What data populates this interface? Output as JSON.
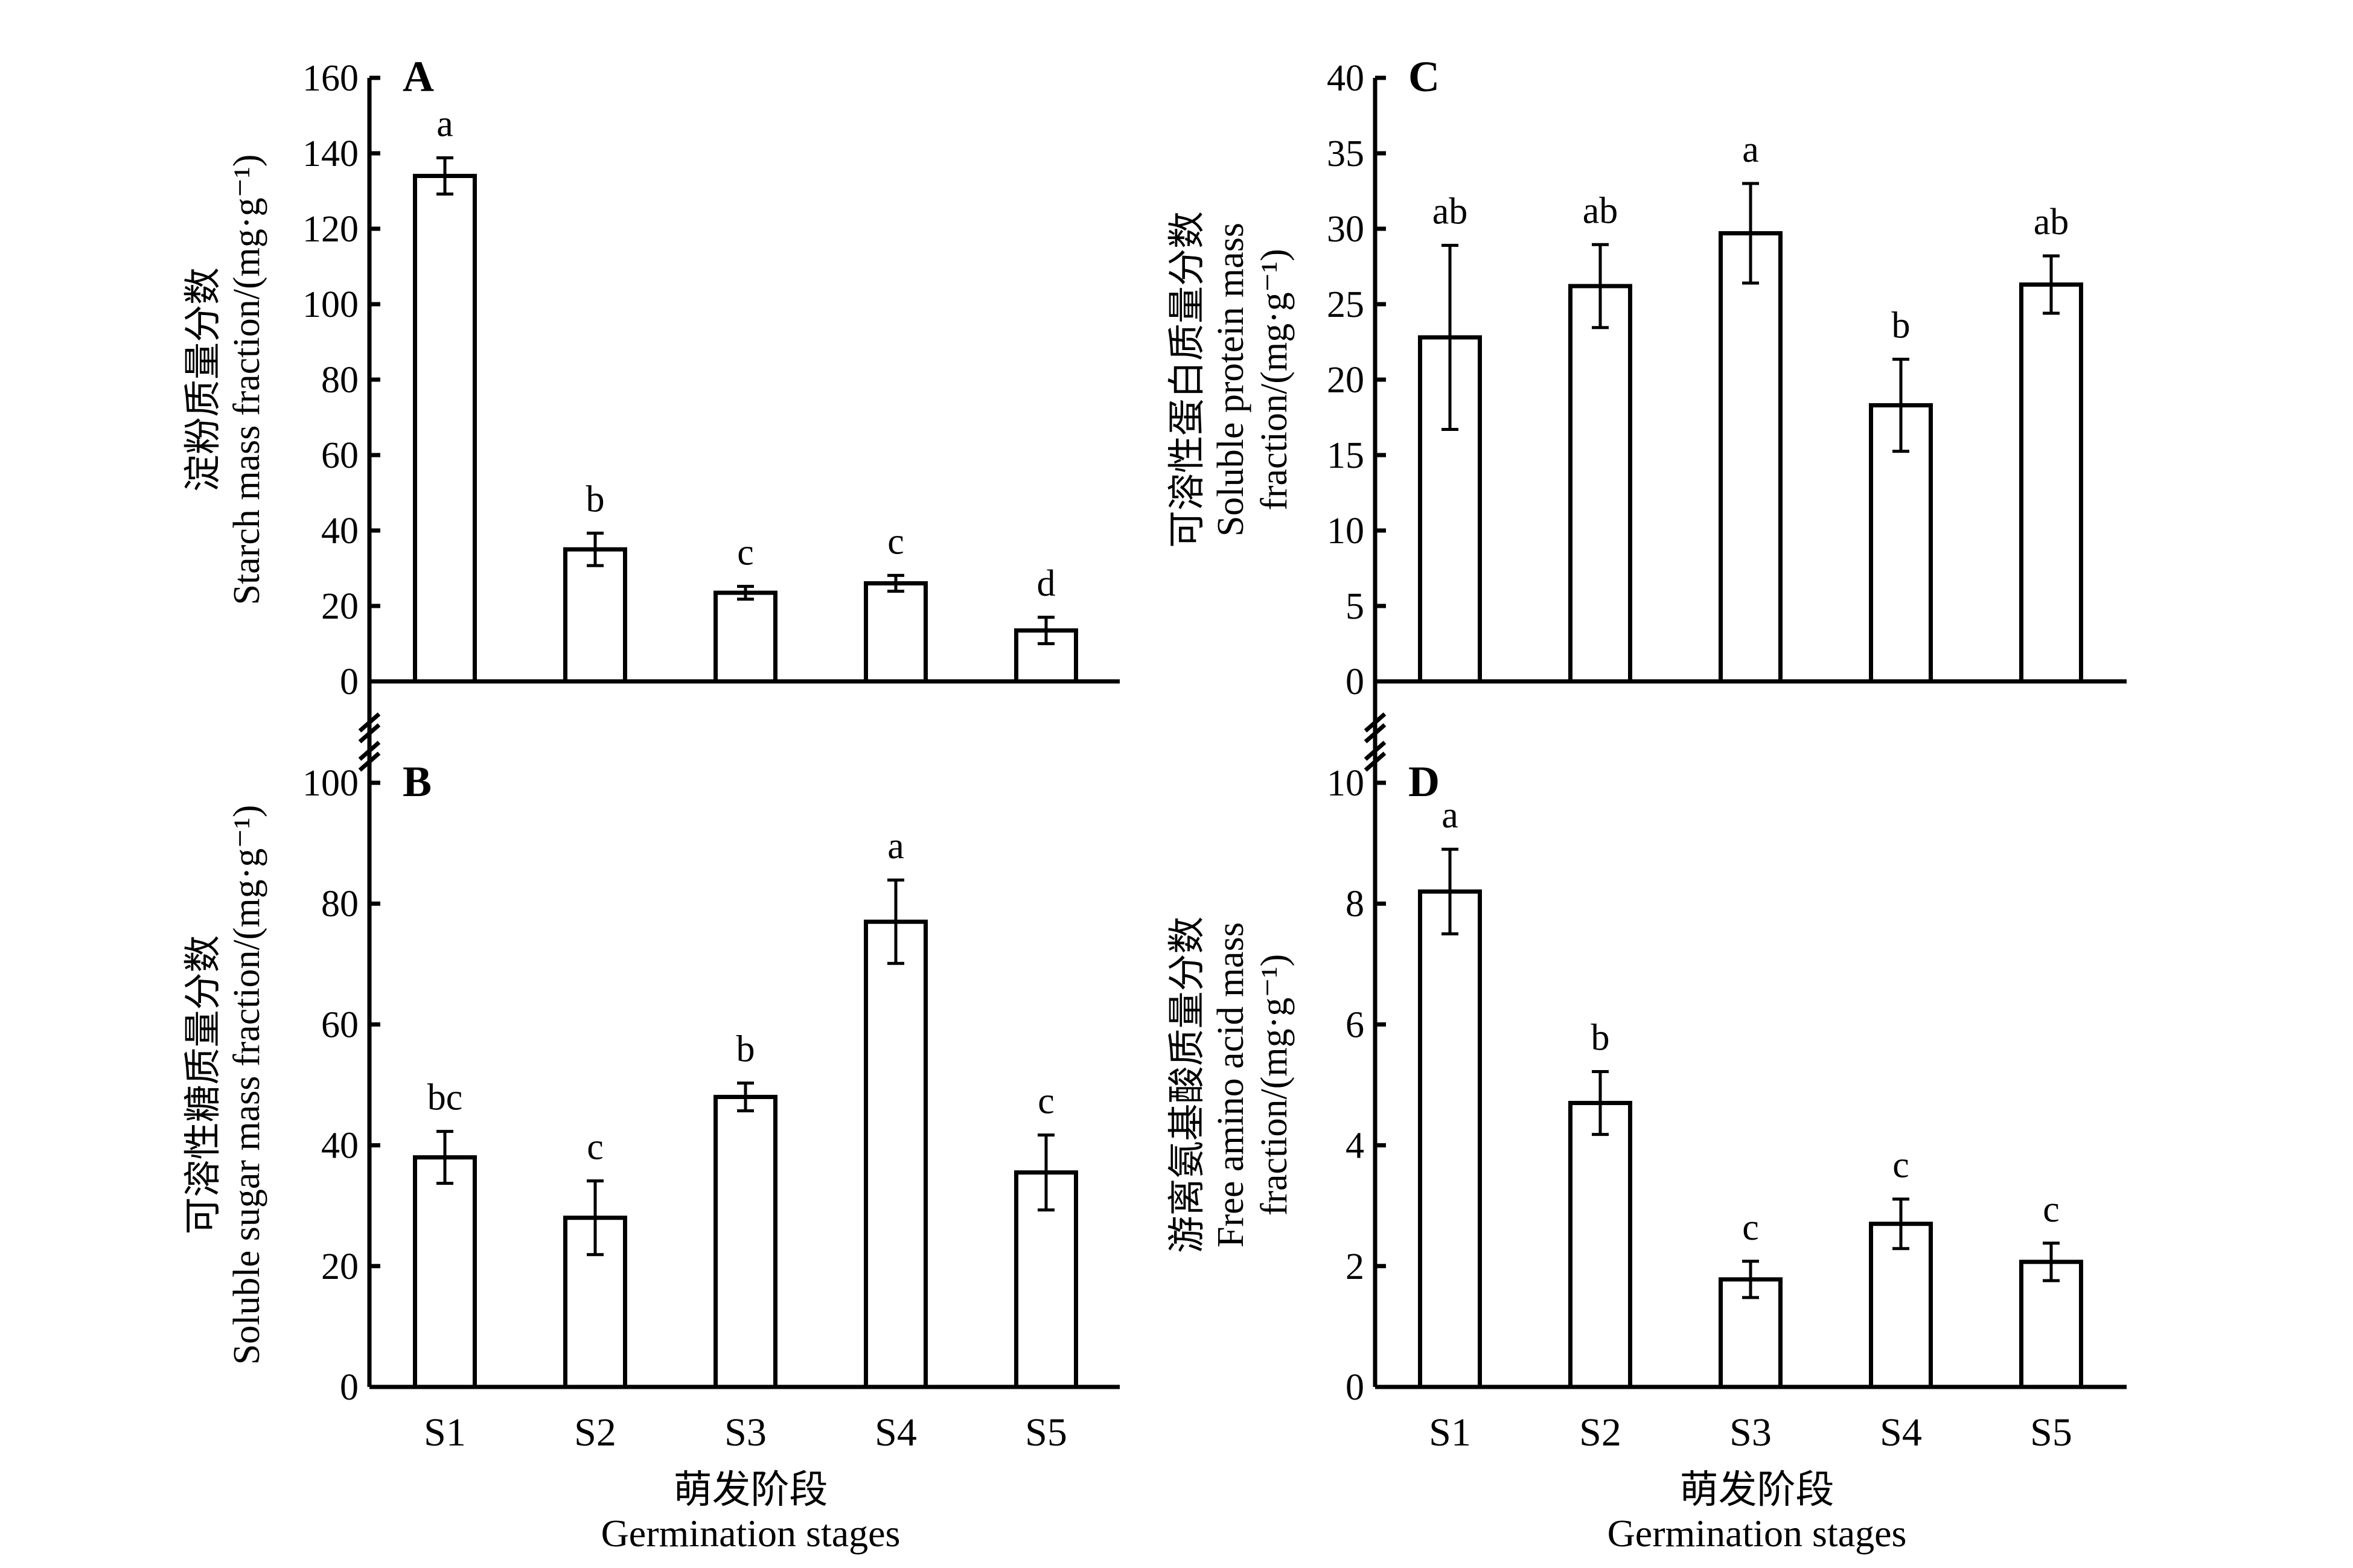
{
  "chart_data": [
    {
      "id": "A",
      "type": "bar",
      "panel_label": "A",
      "title": "",
      "ylabel_cn": "淀粉质量分数",
      "ylabel_lines": [
        "Starch mass fraction/(mg·g⁻¹)"
      ],
      "xlabel_cn": "",
      "xlabel": "",
      "categories": [
        "S1",
        "S2",
        "S3",
        "S4",
        "S5"
      ],
      "show_category_labels": false,
      "values": [
        134,
        35,
        23.5,
        26,
        13.5
      ],
      "errors": [
        4.8,
        4.3,
        1.7,
        2.1,
        3.5
      ],
      "significance": [
        "a",
        "b",
        "c",
        "c",
        "d"
      ],
      "ylim": [
        0,
        160
      ],
      "yticks": [
        0,
        20,
        40,
        60,
        80,
        100,
        120,
        140,
        160
      ],
      "axis_break": "bottom",
      "grid": false,
      "legend": "none"
    },
    {
      "id": "B",
      "type": "bar",
      "panel_label": "B",
      "title": "",
      "ylabel_cn": "可溶性糖质量分数",
      "ylabel_lines": [
        "Soluble sugar mass fraction/(mg·g⁻¹)"
      ],
      "xlabel_cn": "萌发阶段",
      "xlabel": "Germination stages",
      "categories": [
        "S1",
        "S2",
        "S3",
        "S4",
        "S5"
      ],
      "show_category_labels": true,
      "values": [
        38,
        28,
        48,
        77,
        35.5
      ],
      "errors": [
        4.3,
        6.1,
        2.3,
        6.9,
        6.2
      ],
      "significance": [
        "bc",
        "c",
        "b",
        "a",
        "c"
      ],
      "ylim": [
        0,
        100
      ],
      "yticks": [
        0,
        20,
        40,
        60,
        80,
        100
      ],
      "axis_break": "top",
      "grid": false,
      "legend": "none"
    },
    {
      "id": "C",
      "type": "bar",
      "panel_label": "C",
      "title": "",
      "ylabel_cn": "可溶性蛋白质量分数",
      "ylabel_lines": [
        "Soluble protein mass",
        "fraction/(mg·g⁻¹)"
      ],
      "xlabel_cn": "",
      "xlabel": "",
      "categories": [
        "S1",
        "S2",
        "S3",
        "S4",
        "S5"
      ],
      "show_category_labels": false,
      "values": [
        22.8,
        26.2,
        29.7,
        18.3,
        26.3
      ],
      "errors": [
        6.1,
        2.75,
        3.3,
        3.05,
        1.9
      ],
      "significance": [
        "ab",
        "ab",
        "a",
        "b",
        "ab"
      ],
      "ylim": [
        0,
        40
      ],
      "yticks": [
        0,
        5,
        10,
        15,
        20,
        25,
        30,
        35,
        40
      ],
      "axis_break": "bottom",
      "grid": false,
      "legend": "none"
    },
    {
      "id": "D",
      "type": "bar",
      "panel_label": "D",
      "title": "",
      "ylabel_cn": "游离氨基酸质量分数",
      "ylabel_lines": [
        "Free amino acid mass",
        "fraction/(mg·g⁻¹)"
      ],
      "xlabel_cn": "萌发阶段",
      "xlabel": "Germination stages",
      "categories": [
        "S1",
        "S2",
        "S3",
        "S4",
        "S5"
      ],
      "show_category_labels": true,
      "values": [
        8.2,
        4.7,
        1.78,
        2.7,
        2.07
      ],
      "errors": [
        0.7,
        0.52,
        0.3,
        0.41,
        0.31
      ],
      "significance": [
        "a",
        "b",
        "c",
        "c",
        "c"
      ],
      "ylim": [
        0,
        10
      ],
      "yticks": [
        0,
        2,
        4,
        6,
        8,
        10
      ],
      "axis_break": "top",
      "grid": false,
      "legend": "none"
    }
  ]
}
